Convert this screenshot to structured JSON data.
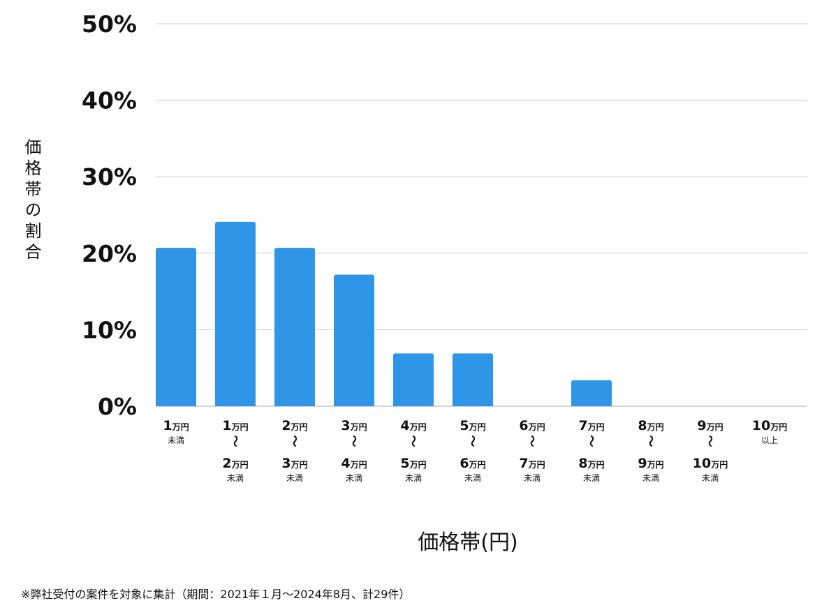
{
  "chart_data": {
    "type": "bar",
    "title": "",
    "xlabel": "価格帯(円)",
    "ylabel": "価格帯の割合",
    "ylim": [
      0,
      50
    ],
    "y_ticks": [
      "0%",
      "10%",
      "20%",
      "30%",
      "40%",
      "50%"
    ],
    "grid": true,
    "bar_color": "#2f95e6",
    "categories": [
      {
        "from": "1",
        "from_unit": "万円",
        "to": "",
        "to_unit": "",
        "suffix": "未満"
      },
      {
        "from": "1",
        "from_unit": "万円",
        "to": "2",
        "to_unit": "万円",
        "suffix": "未満"
      },
      {
        "from": "2",
        "from_unit": "万円",
        "to": "3",
        "to_unit": "万円",
        "suffix": "未満"
      },
      {
        "from": "3",
        "from_unit": "万円",
        "to": "4",
        "to_unit": "万円",
        "suffix": "未満"
      },
      {
        "from": "4",
        "from_unit": "万円",
        "to": "5",
        "to_unit": "万円",
        "suffix": "未満"
      },
      {
        "from": "5",
        "from_unit": "万円",
        "to": "6",
        "to_unit": "万円",
        "suffix": "未満"
      },
      {
        "from": "6",
        "from_unit": "万円",
        "to": "7",
        "to_unit": "万円",
        "suffix": "未満"
      },
      {
        "from": "7",
        "from_unit": "万円",
        "to": "8",
        "to_unit": "万円",
        "suffix": "未満"
      },
      {
        "from": "8",
        "from_unit": "万円",
        "to": "9",
        "to_unit": "万円",
        "suffix": "未満"
      },
      {
        "from": "9",
        "from_unit": "万円",
        "to": "10",
        "to_unit": "万円",
        "suffix": "未満"
      },
      {
        "from": "10",
        "from_unit": "万円",
        "to": "",
        "to_unit": "",
        "suffix": "以上"
      }
    ],
    "values": [
      20.7,
      24.1,
      20.7,
      17.2,
      6.9,
      6.9,
      0,
      3.4,
      0,
      0,
      0
    ]
  },
  "range_mark": "〜",
  "footnote": "※弊社受付の案件を対象に集計（期間：2021年１月〜2024年8月、計29件）"
}
